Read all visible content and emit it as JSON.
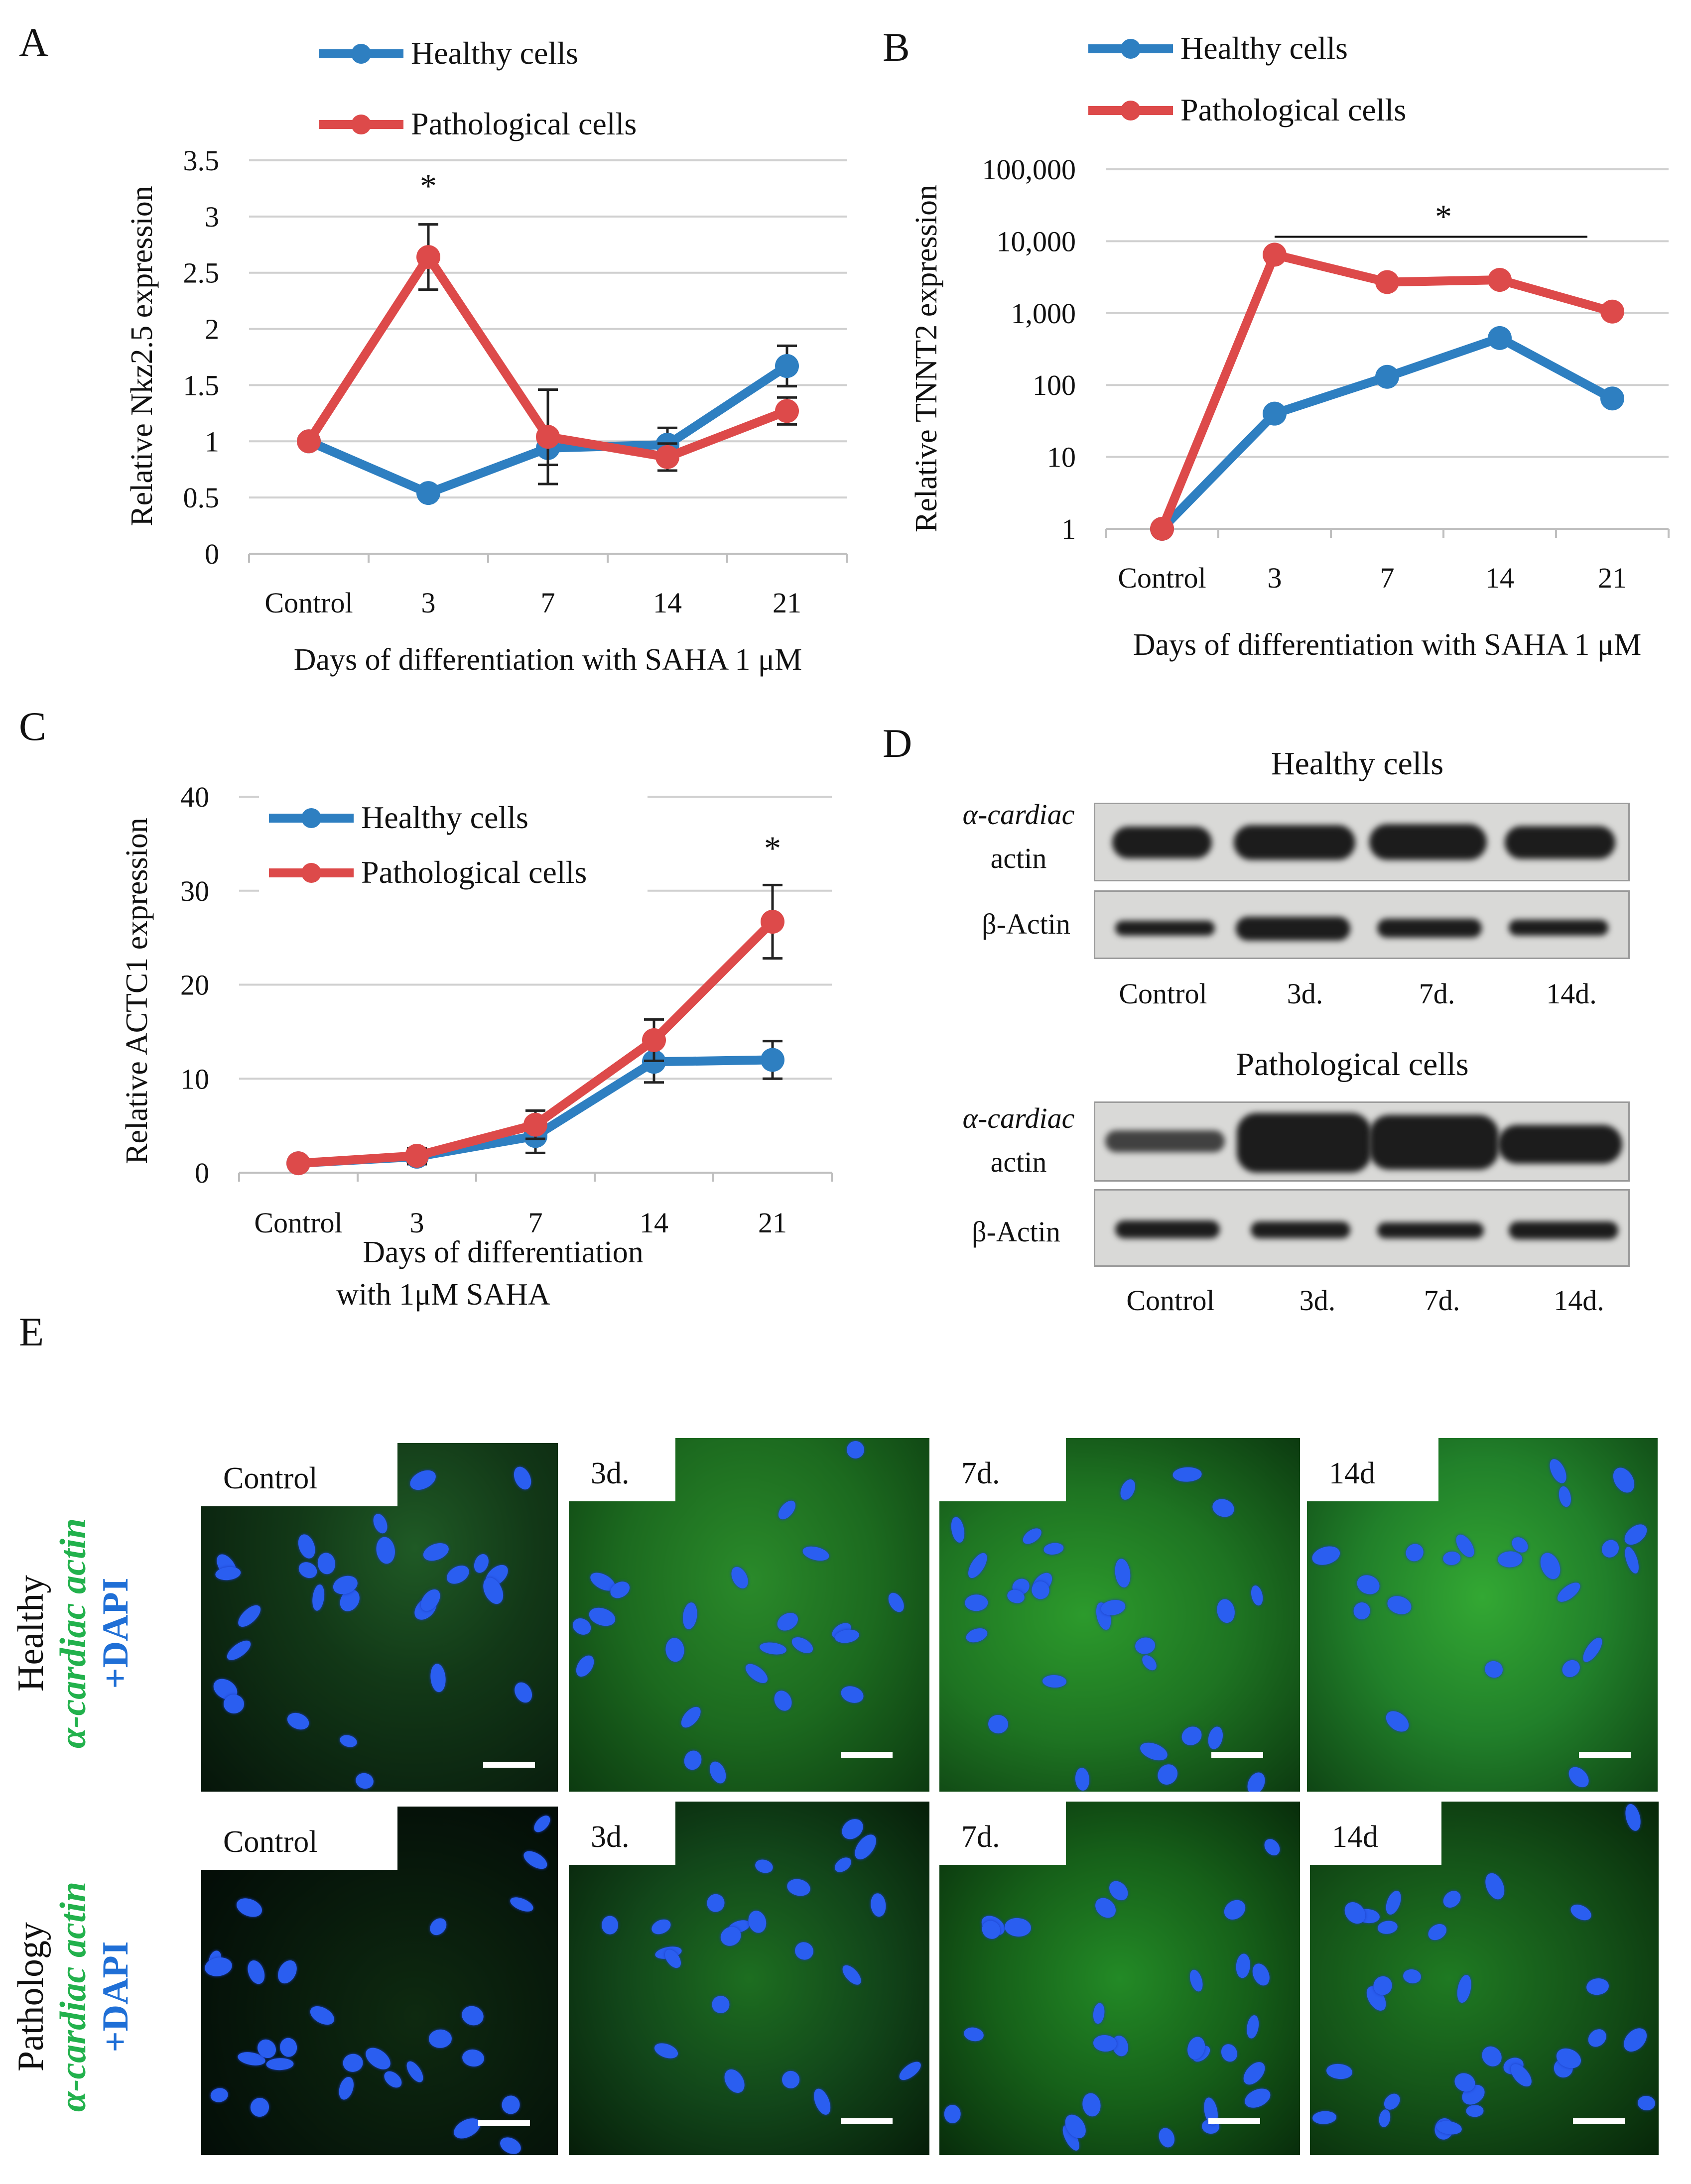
{
  "panels": {
    "a": "A",
    "b": "B",
    "c": "C",
    "d": "D",
    "e": "E"
  },
  "legend": {
    "healthy": "Healthy cells",
    "pathological": "Pathological cells"
  },
  "colors": {
    "healthy": "#2E7FC1",
    "pathological": "#DD4A4A",
    "green_stain": "#22b14c",
    "blue_stain": "#1f6fd6"
  },
  "chart_data": [
    {
      "id": "A",
      "type": "line",
      "categories": [
        "Control",
        "3",
        "7",
        "14",
        "21"
      ],
      "series": [
        {
          "name": "Healthy cells",
          "values": [
            1.0,
            0.54,
            0.94,
            0.97,
            1.67
          ],
          "errors": [
            0,
            0.03,
            0.15,
            0.15,
            0.18
          ]
        },
        {
          "name": "Pathological cells",
          "values": [
            1.0,
            2.64,
            1.04,
            0.86,
            1.27
          ],
          "errors": [
            0,
            0.29,
            0.42,
            0.12,
            0.12
          ]
        }
      ],
      "ylim": [
        0,
        3.5
      ],
      "yticks": [
        "0",
        "0.5",
        "1",
        "1.5",
        "2",
        "2.5",
        "3",
        "3.5"
      ],
      "xlabel": "Days of differentiation with SAHA 1 μM",
      "ylabel": "Relative Nkz2.5 expression",
      "annotations": [
        "*"
      ]
    },
    {
      "id": "B",
      "type": "line",
      "yscale": "log",
      "categories": [
        "Control",
        "3",
        "7",
        "14",
        "21"
      ],
      "series": [
        {
          "name": "Healthy cells",
          "values": [
            1,
            40,
            130,
            450,
            65
          ]
        },
        {
          "name": "Pathological cells",
          "values": [
            1,
            6500,
            2700,
            2900,
            1050
          ]
        }
      ],
      "ylim": [
        1,
        100000
      ],
      "yticks": [
        "1",
        "10",
        "100",
        "1,000",
        "10,000",
        "100,000"
      ],
      "xlabel": "Days of differentiation with SAHA 1  μM",
      "ylabel": "Relative TNNT2 expression",
      "annotations": [
        "*"
      ]
    },
    {
      "id": "C",
      "type": "line",
      "categories": [
        "Control",
        "3",
        "7",
        "14",
        "21"
      ],
      "series": [
        {
          "name": "Healthy cells",
          "values": [
            1.0,
            1.7,
            3.9,
            11.8,
            12.0
          ],
          "errors": [
            0,
            0.8,
            1.8,
            2.2,
            2.0
          ]
        },
        {
          "name": "Pathological cells",
          "values": [
            1.0,
            1.8,
            5.1,
            14.1,
            26.7
          ],
          "errors": [
            0,
            0.8,
            1.5,
            2.2,
            3.9
          ]
        }
      ],
      "ylim": [
        0,
        40
      ],
      "yticks": [
        "0",
        "10",
        "20",
        "30",
        "40"
      ],
      "xlabel": "Days of differentiation",
      "xlabel2": "with 1μM SAHA",
      "ylabel": "Relative ACTC1 expression",
      "annotations": [
        "*"
      ]
    }
  ],
  "blots": {
    "healthy_title": "Healthy cells",
    "pathological_title": "Pathological cells",
    "alpha_label_1": "α-cardiac",
    "alpha_label_2": "actin",
    "beta_label": "β-Actin",
    "lanes": [
      "Control",
      "3d.",
      "7d.",
      "14d."
    ]
  },
  "microscopy": {
    "row_healthy": "Healthy",
    "row_pathology": "Pathology",
    "stain": "α-cardiac actin",
    "dapi": "+DAPI",
    "healthy_labels": [
      "Control",
      "3d.",
      "7d.",
      "14d"
    ],
    "pathology_labels": [
      "Control",
      "3d.",
      "7d.",
      "14d"
    ]
  }
}
